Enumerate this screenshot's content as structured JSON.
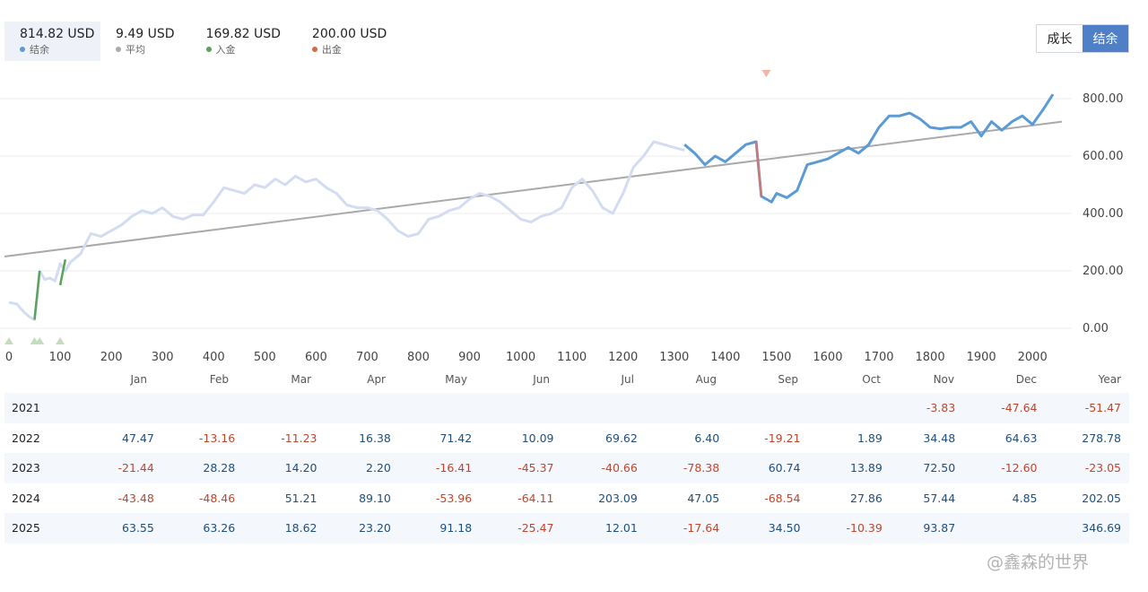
{
  "stats": [
    {
      "value": "814.82 USD",
      "label": "结余",
      "color": "#5b9bd5"
    },
    {
      "value": "9.49 USD",
      "label": "平均",
      "color": "#aaaaaa"
    },
    {
      "value": "169.82 USD",
      "label": "入金",
      "color": "#5aa35a"
    },
    {
      "value": "200.00 USD",
      "label": "出金",
      "color": "#d4694a"
    }
  ],
  "toggle": {
    "growth_label": "成长",
    "balance_label": "结余"
  },
  "chart_data": {
    "type": "line",
    "xlim": [
      0,
      2050
    ],
    "ylim": [
      -30,
      830
    ],
    "x_ticks": [
      0,
      100,
      200,
      300,
      400,
      500,
      600,
      700,
      800,
      900,
      1000,
      1100,
      1200,
      1300,
      1400,
      1500,
      1600,
      1700,
      1800,
      1900,
      2000
    ],
    "x_tick_labels": [
      "0",
      "100",
      "200",
      "300",
      "400",
      "500",
      "600",
      "700",
      "800",
      "900",
      "1000",
      "1100",
      "1200",
      "1300",
      "1400",
      "1500",
      "1600",
      "1700",
      "1800",
      "1900",
      "2000"
    ],
    "y_ticks": [
      0,
      200,
      400,
      600,
      800
    ],
    "y_tick_labels": [
      "0.00",
      "200.00",
      "400.00",
      "600.00",
      "800.00"
    ],
    "series": [
      {
        "name": "结余 (faded history)",
        "color": "#d3dcf0",
        "x": [
          0,
          15,
          30,
          40,
          50,
          55,
          60,
          70,
          80,
          90,
          100,
          110,
          120,
          140,
          160,
          180,
          200,
          220,
          240,
          260,
          280,
          300,
          320,
          340,
          360,
          380,
          400,
          420,
          440,
          460,
          480,
          500,
          520,
          540,
          560,
          580,
          600,
          620,
          640,
          660,
          680,
          700,
          720,
          740,
          760,
          780,
          800,
          820,
          840,
          860,
          880,
          900,
          920,
          940,
          960,
          980,
          1000,
          1020,
          1040,
          1060,
          1080,
          1100,
          1120,
          1140,
          1160,
          1180,
          1200,
          1220,
          1240,
          1260,
          1280,
          1300,
          1320
        ],
        "y": [
          90,
          85,
          55,
          40,
          30,
          110,
          200,
          170,
          175,
          165,
          225,
          200,
          230,
          260,
          330,
          320,
          340,
          360,
          390,
          410,
          400,
          420,
          390,
          380,
          395,
          395,
          440,
          490,
          480,
          470,
          500,
          490,
          520,
          500,
          530,
          510,
          520,
          490,
          470,
          430,
          420,
          420,
          410,
          380,
          340,
          320,
          330,
          380,
          390,
          410,
          420,
          450,
          470,
          460,
          440,
          410,
          380,
          370,
          390,
          400,
          420,
          490,
          520,
          480,
          420,
          400,
          470,
          560,
          600,
          650,
          640,
          630,
          620
        ]
      },
      {
        "name": "结余",
        "color": "#5b9bd5",
        "x": [
          1320,
          1340,
          1360,
          1380,
          1400,
          1420,
          1440,
          1460,
          1470,
          1480,
          1490,
          1500,
          1520,
          1540,
          1560,
          1580,
          1600,
          1620,
          1640,
          1660,
          1680,
          1700,
          1720,
          1740,
          1760,
          1780,
          1800,
          1820,
          1840,
          1860,
          1880,
          1900,
          1920,
          1940,
          1960,
          1980,
          2000,
          2020,
          2040
        ],
        "y": [
          640,
          610,
          570,
          600,
          580,
          610,
          640,
          650,
          460,
          450,
          440,
          470,
          455,
          480,
          570,
          580,
          590,
          610,
          630,
          610,
          640,
          700,
          740,
          740,
          750,
          730,
          700,
          695,
          700,
          700,
          720,
          670,
          720,
          690,
          720,
          740,
          710,
          760,
          815
        ]
      },
      {
        "name": "入金",
        "color": "#5aa35a",
        "x": [
          [
            50,
            60
          ],
          [
            100,
            110
          ]
        ],
        "y": [
          [
            30,
            200
          ],
          [
            150,
            240
          ]
        ]
      },
      {
        "name": "出金",
        "color": "#c97a78",
        "x": [
          [
            1460,
            1470
          ]
        ],
        "y": [
          [
            650,
            460
          ]
        ]
      },
      {
        "name": "平均",
        "color": "#aaaaaa",
        "x": [
          0,
          2040
        ],
        "y": [
          250,
          720
        ]
      }
    ],
    "markers": [
      {
        "type": "deposit",
        "x": 0
      },
      {
        "type": "deposit",
        "x": 50
      },
      {
        "type": "deposit",
        "x": 60
      },
      {
        "type": "deposit",
        "x": 100
      },
      {
        "type": "withdrawal",
        "x": 1480
      }
    ]
  },
  "returns_table": {
    "columns": [
      "",
      "Jan",
      "Feb",
      "Mar",
      "Apr",
      "May",
      "Jun",
      "Jul",
      "Aug",
      "Sep",
      "Oct",
      "Nov",
      "Dec",
      "Year"
    ],
    "rows": [
      {
        "year": "2021",
        "cells": [
          "",
          "",
          "",
          "",
          "",
          "",
          "",
          "",
          "",
          "",
          "-3.83",
          "-47.64",
          "-51.47"
        ]
      },
      {
        "year": "2022",
        "cells": [
          "47.47",
          "-13.16",
          "-11.23",
          "16.38",
          "71.42",
          "10.09",
          "69.62",
          "6.40",
          "-19.21",
          "1.89",
          "34.48",
          "64.63",
          "278.78"
        ]
      },
      {
        "year": "2023",
        "cells": [
          "-21.44",
          "28.28",
          "14.20",
          "2.20",
          "-16.41",
          "-45.37",
          "-40.66",
          "-78.38",
          "60.74",
          "13.89",
          "72.50",
          "-12.60",
          "-23.05"
        ]
      },
      {
        "year": "2024",
        "cells": [
          "-43.48",
          "-48.46",
          "51.21",
          "89.10",
          "-53.96",
          "-64.11",
          "203.09",
          "47.05",
          "-68.54",
          "27.86",
          "57.44",
          "4.85",
          "202.05"
        ]
      },
      {
        "year": "2025",
        "cells": [
          "63.55",
          "63.26",
          "18.62",
          "23.20",
          "91.18",
          "-25.47",
          "12.01",
          "-17.64",
          "34.50",
          "-10.39",
          "93.87",
          "",
          "346.69"
        ]
      }
    ]
  },
  "watermark": "@鑫森的世界"
}
